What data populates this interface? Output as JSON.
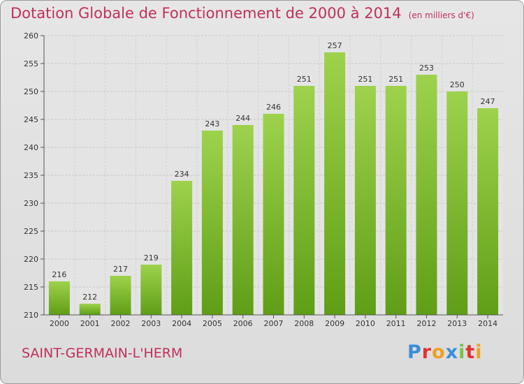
{
  "chart_data": {
    "type": "bar",
    "title": "Dotation Globale de Fonctionnement de 2000 à 2014",
    "unit": "(en milliers d'€)",
    "categories": [
      "2000",
      "2001",
      "2002",
      "2003",
      "2004",
      "2005",
      "2006",
      "2007",
      "2008",
      "2009",
      "2010",
      "2011",
      "2012",
      "2013",
      "2014"
    ],
    "values": [
      216,
      212,
      217,
      219,
      234,
      243,
      244,
      246,
      251,
      257,
      251,
      251,
      253,
      250,
      247
    ],
    "ylim": [
      210,
      260
    ],
    "yticks": [
      210,
      215,
      220,
      225,
      230,
      235,
      240,
      245,
      250,
      255,
      260
    ],
    "grid": true,
    "colors": {
      "bar_top": "#9ed24c",
      "bar_bottom": "#5f9e16",
      "title": "#c0305a"
    }
  },
  "footer": {
    "commune": "SAINT-GERMAIN-L'HERM",
    "logo": "Proxiti"
  }
}
